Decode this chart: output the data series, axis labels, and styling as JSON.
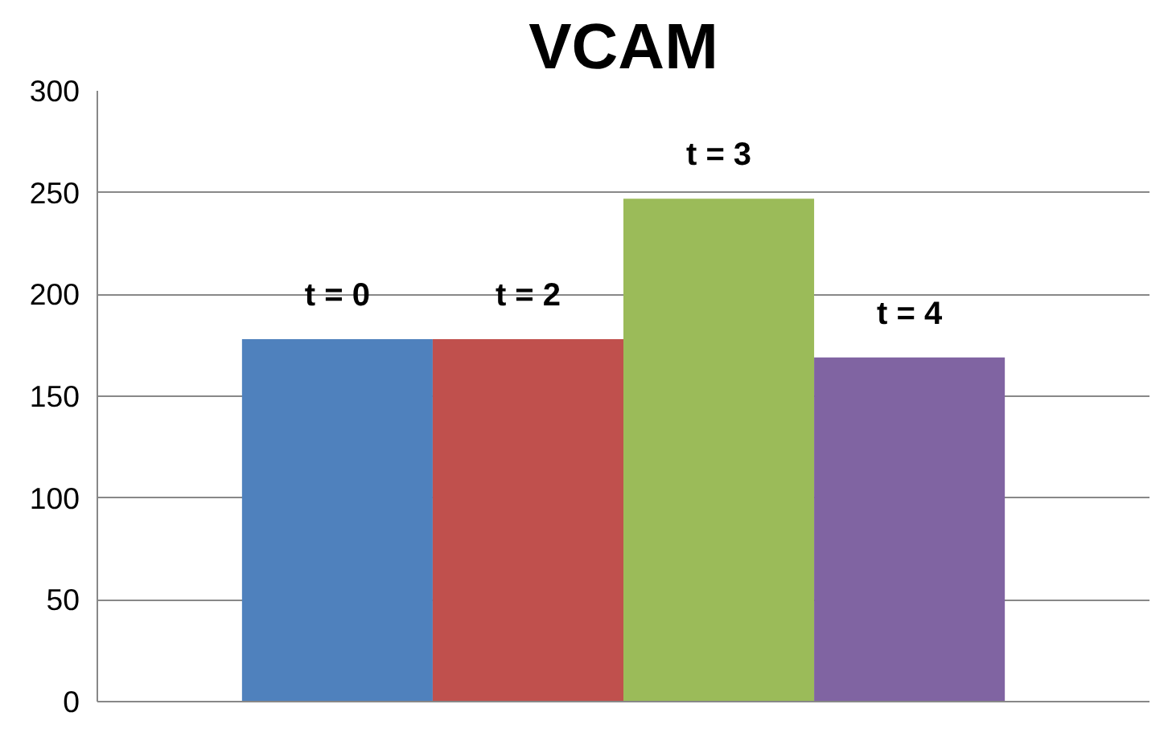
{
  "chart_data": {
    "type": "bar",
    "title": "VCAM",
    "categories": [
      null
    ],
    "series": [
      {
        "name": "t = 0",
        "color": "#4f81bd",
        "values": [
          178
        ]
      },
      {
        "name": "t = 2",
        "color": "#c0504d",
        "values": [
          178
        ]
      },
      {
        "name": "t = 3",
        "color": "#9bbb59",
        "values": [
          247
        ]
      },
      {
        "name": "t = 4",
        "color": "#8064a2",
        "values": [
          169
        ]
      }
    ],
    "ylim": [
      0,
      300
    ],
    "yticks": [
      0,
      50,
      100,
      150,
      200,
      250,
      300
    ],
    "grid": "y"
  }
}
